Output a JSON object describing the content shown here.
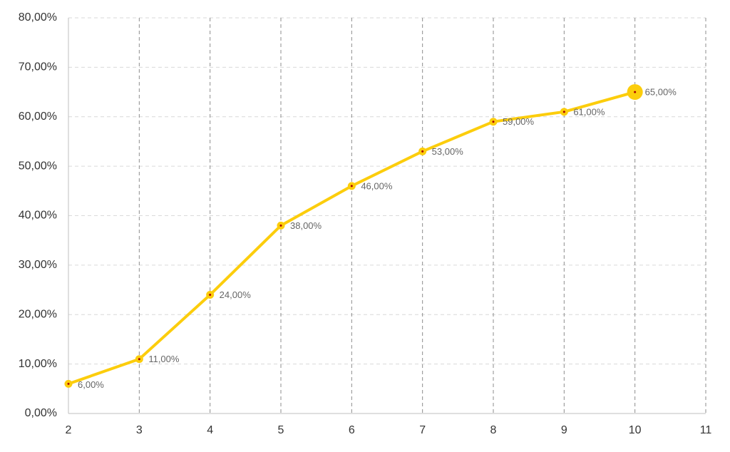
{
  "chart_data": {
    "type": "line",
    "x": [
      2,
      3,
      4,
      5,
      6,
      7,
      8,
      9,
      10
    ],
    "values": [
      6,
      11,
      24,
      38,
      46,
      53,
      59,
      61,
      65
    ],
    "value_labels": [
      "6,00%",
      "11,00%",
      "24,00%",
      "38,00%",
      "46,00%",
      "53,00%",
      "59,00%",
      "61,00%",
      "65,00%"
    ],
    "color": "#fccd0c",
    "xlim": [
      2,
      11
    ],
    "xticks": [
      2,
      3,
      4,
      5,
      6,
      7,
      8,
      9,
      10,
      11
    ],
    "ylim": [
      0,
      80
    ],
    "yticks": [
      {
        "value": 0,
        "label": "0,00%"
      },
      {
        "value": 10,
        "label": "10,00%"
      },
      {
        "value": 20,
        "label": "20,00%"
      },
      {
        "value": 30,
        "label": "30,00%"
      },
      {
        "value": 40,
        "label": "40,00%"
      },
      {
        "value": 50,
        "label": "50,00%"
      },
      {
        "value": 60,
        "label": "60,00%"
      },
      {
        "value": 70,
        "label": "70,00%"
      },
      {
        "value": 80,
        "label": "80,00%"
      }
    ],
    "grid": true
  }
}
